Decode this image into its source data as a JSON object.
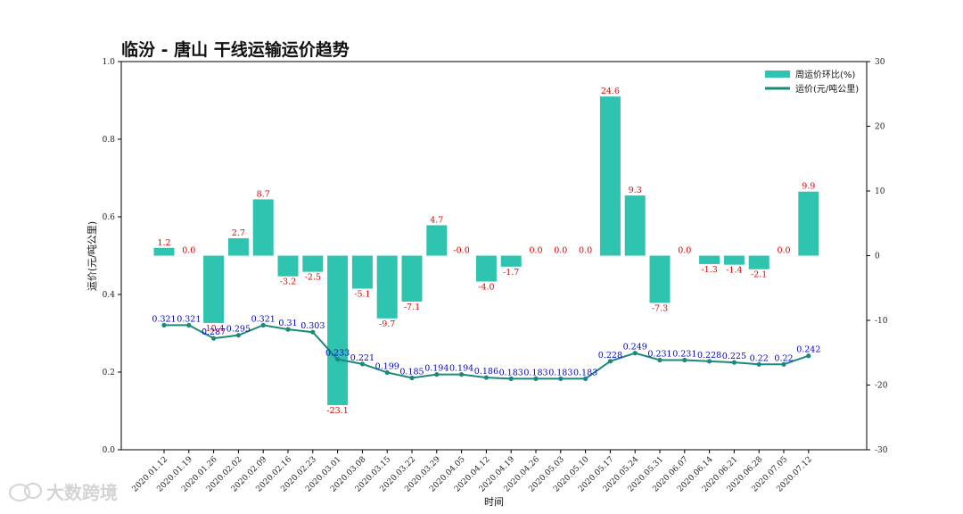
{
  "chart_data": {
    "type": "bar+line",
    "title": "临汾 - 唐山 干线运输运价趋势",
    "xlabel": "时间",
    "ylabel_left": "运价(元/吨公里)",
    "ylim_left": [
      0,
      1.0
    ],
    "yticks_left": [
      "0.0",
      "0.2",
      "0.4",
      "0.6",
      "0.8",
      "1.0"
    ],
    "ylim_right": [
      -30,
      30
    ],
    "yticks_right": [
      "-30",
      "-20",
      "-10",
      "0",
      "10",
      "20",
      "30"
    ],
    "legend_position": "top-right",
    "grid": false,
    "categories": [
      "2020.01.12",
      "2020.01.19",
      "2020.01.26",
      "2020.02.02",
      "2020.02.09",
      "2020.02.16",
      "2020.02.23",
      "2020.03.01",
      "2020.03.08",
      "2020.03.15",
      "2020.03.22",
      "2020.03.29",
      "2020.04.05",
      "2020.04.12",
      "2020.04.19",
      "2020.04.26",
      "2020.05.03",
      "2020.05.10",
      "2020.05.17",
      "2020.05.24",
      "2020.05.31",
      "2020.06.07",
      "2020.06.14",
      "2020.06.21",
      "2020.06.28",
      "2020.07.05",
      "2020.07.12"
    ],
    "series": [
      {
        "name": "周运价环比(%)",
        "kind": "bar",
        "axis": "right",
        "color": "#2ec4b0",
        "values": [
          1.2,
          0.0,
          -10.4,
          2.7,
          8.7,
          -3.2,
          -2.5,
          -23.1,
          -5.1,
          -9.7,
          -7.1,
          4.7,
          -0.0,
          -4.0,
          -1.7,
          0.0,
          0.0,
          0.0,
          24.6,
          9.3,
          -7.3,
          0.0,
          -1.3,
          -1.4,
          -2.1,
          0.0,
          9.9
        ],
        "labels": [
          "1.2",
          "0.0",
          "-10.4",
          "2.7",
          "8.7",
          "-3.2",
          "-2.5",
          "-23.1",
          "-5.1",
          "-9.7",
          "-7.1",
          "4.7",
          "-0.0",
          "-4.0",
          "-1.7",
          "0.0",
          "0.0",
          "0.0",
          "24.6",
          "9.3",
          "-7.3",
          "0.0",
          "-1.3",
          "-1.4",
          "-2.1",
          "0.0",
          "9.9"
        ]
      },
      {
        "name": "运价(元/吨公里)",
        "kind": "line",
        "axis": "left",
        "color": "#1b8a7a",
        "values": [
          0.321,
          0.321,
          0.287,
          0.295,
          0.321,
          0.31,
          0.303,
          0.233,
          0.221,
          0.199,
          0.185,
          0.194,
          0.194,
          0.186,
          0.183,
          0.183,
          0.183,
          0.183,
          0.228,
          0.249,
          0.231,
          0.231,
          0.228,
          0.225,
          0.22,
          0.22,
          0.242
        ],
        "labels": [
          "0.321",
          "0.321",
          "0.287",
          "0.295",
          "0.321",
          "0.31",
          "0.303",
          "0.233",
          "0.221",
          "0.199",
          "0.185",
          "0.194",
          "0.194",
          "0.186",
          "0.183",
          "0.183",
          "0.183",
          "0.183",
          "0.228",
          "0.249",
          "0.231",
          "0.231",
          "0.228",
          "0.225",
          "0.22",
          "0.22",
          "0.242"
        ]
      }
    ]
  },
  "colors": {
    "bar_label": "#dd0000",
    "line_label": "#0000cc",
    "watermark": "#d4d4d4"
  },
  "watermark": {
    "text": "大数跨境",
    "icon": "chat-bubble-icon"
  }
}
